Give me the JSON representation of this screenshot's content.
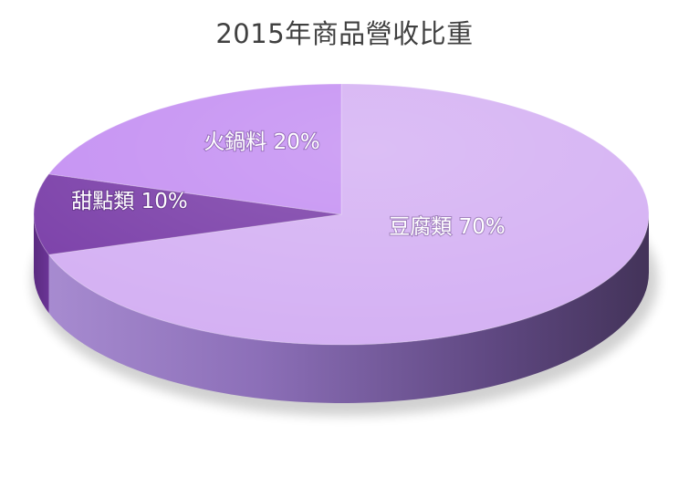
{
  "chart_data": {
    "type": "pie",
    "title": "2015年商品營收比重",
    "categories": [
      "豆腐類",
      "甜點類",
      "火鍋料"
    ],
    "values": [
      70,
      10,
      20
    ],
    "unit": "%",
    "labels": [
      "豆腐類 70%",
      "甜點類 10%",
      "火鍋料 20%"
    ],
    "colors": {
      "豆腐類": "#d4b0f3",
      "甜點類": "#7a3ea8",
      "火鍋料": "#c48ff2"
    },
    "style": "3d"
  }
}
